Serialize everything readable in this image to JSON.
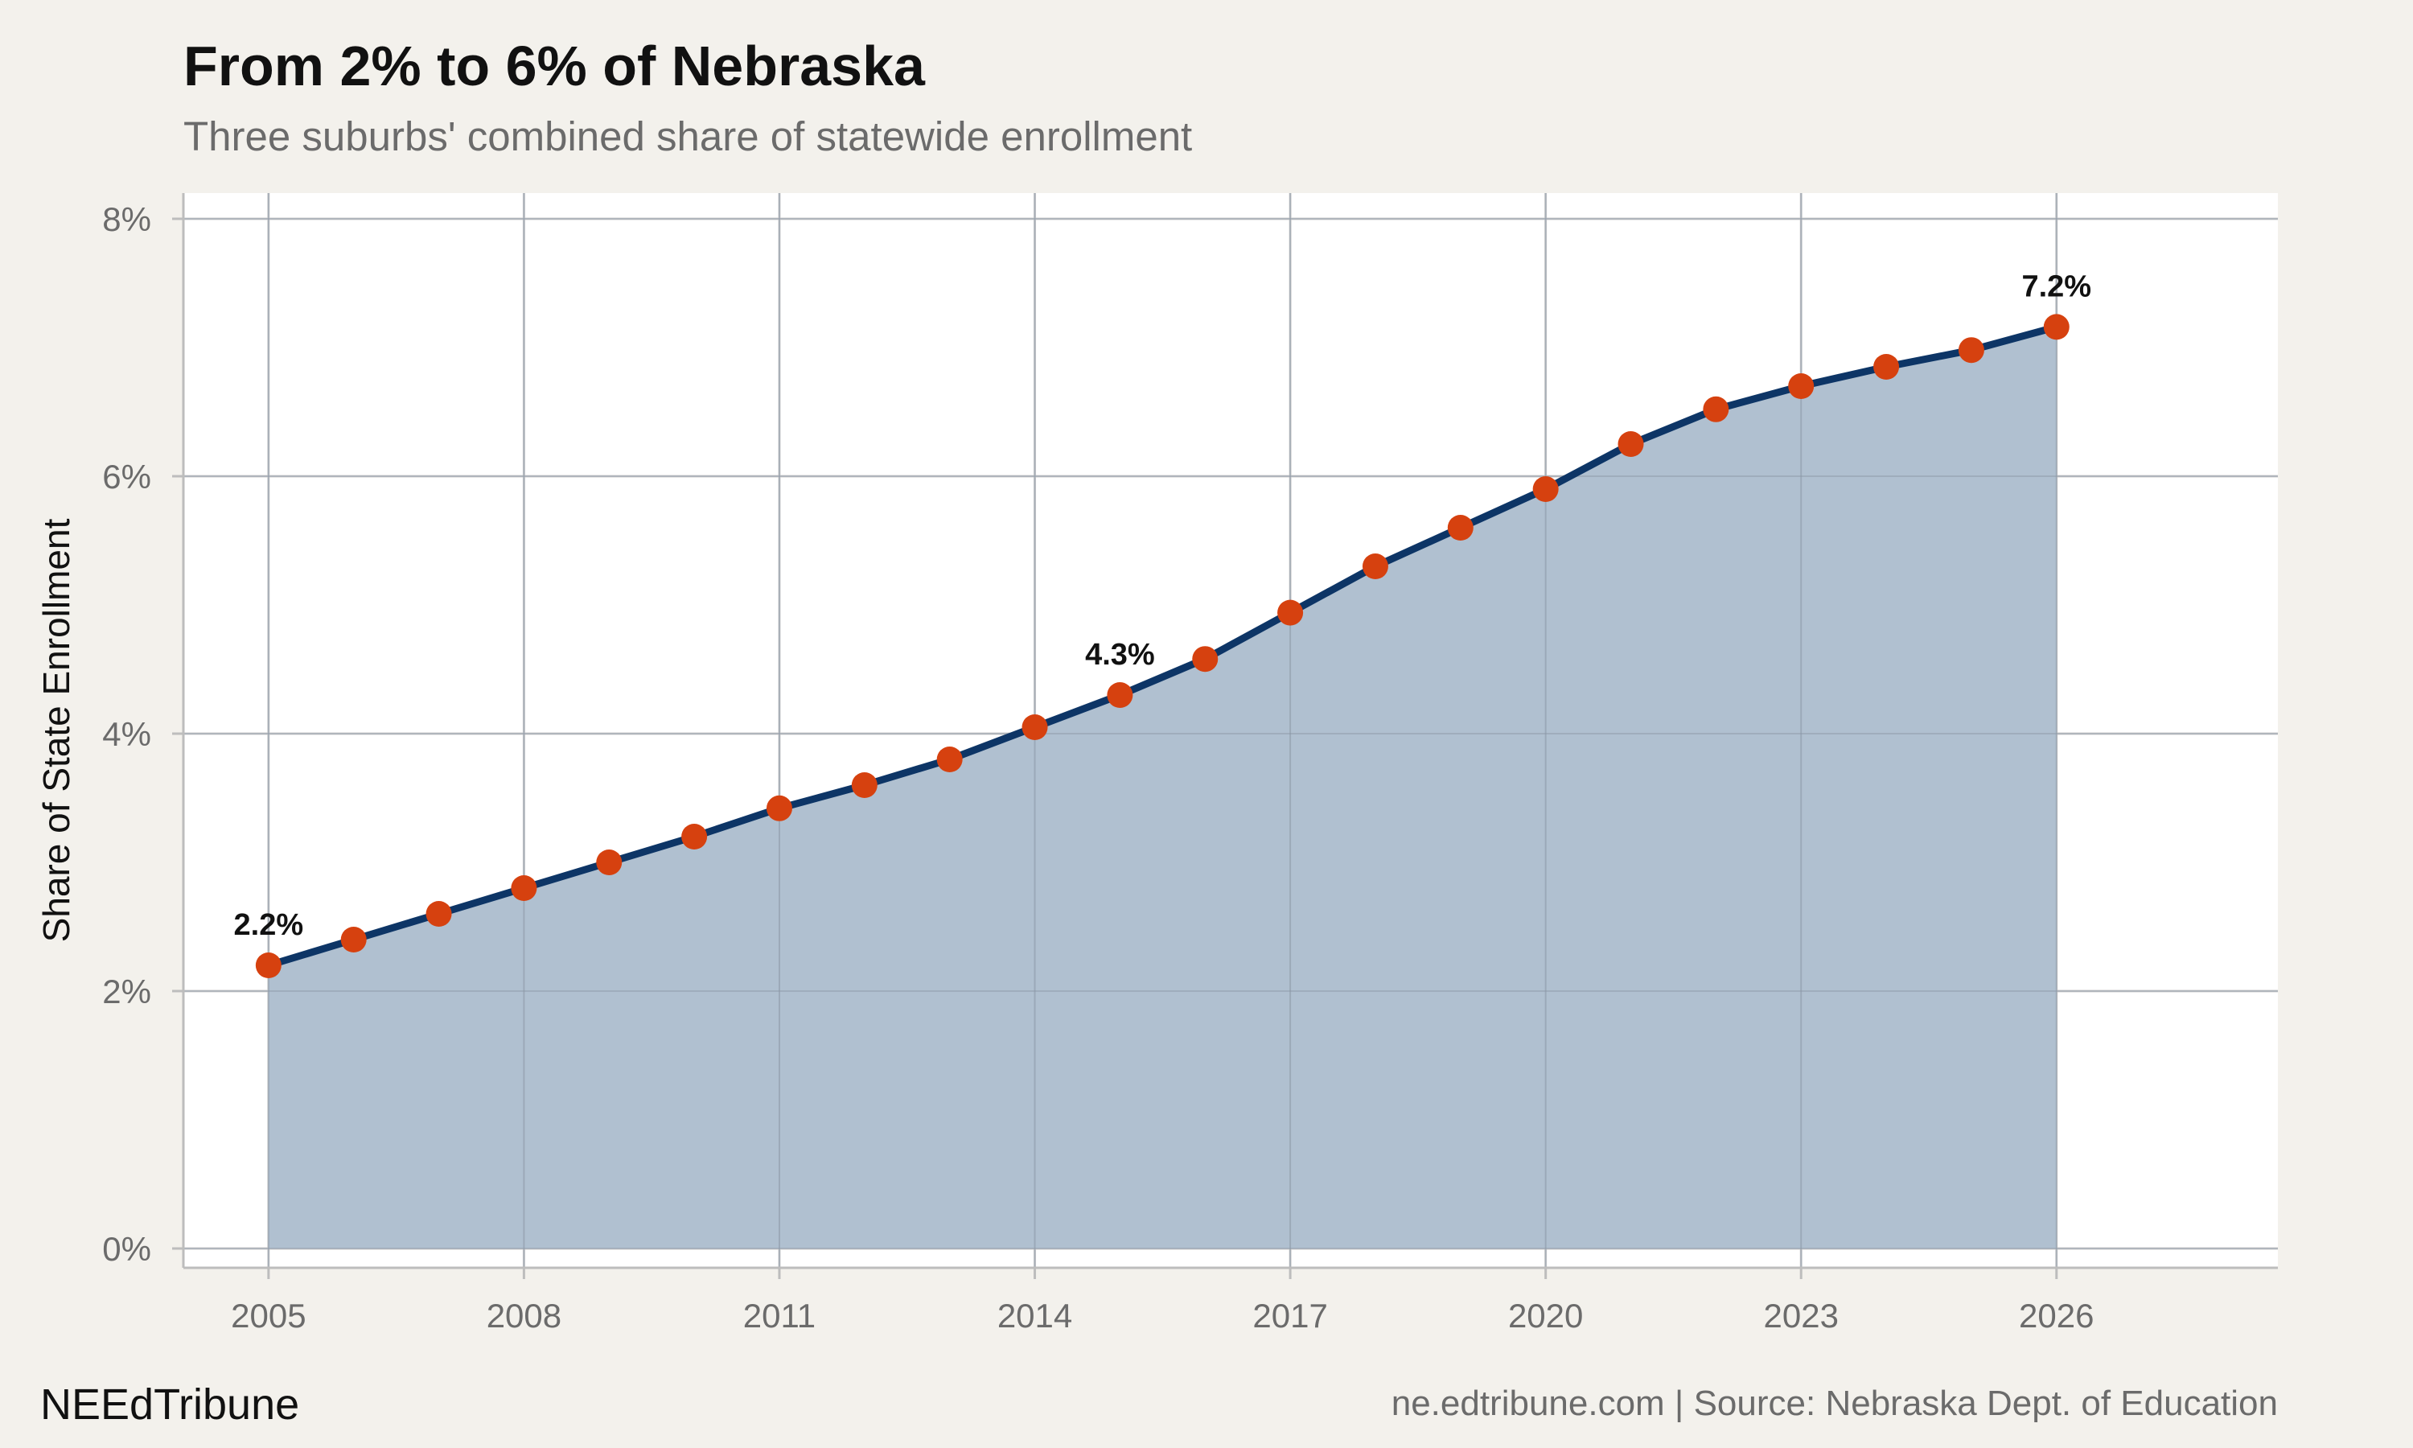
{
  "chart_data": {
    "type": "area",
    "title": "From 2% to 6% of Nebraska",
    "subtitle": "Three suburbs' combined share of statewide enrollment",
    "xlabel": "",
    "ylabel": "Share of State Enrollment",
    "x": [
      2005,
      2006,
      2007,
      2008,
      2009,
      2010,
      2011,
      2012,
      2013,
      2014,
      2015,
      2016,
      2017,
      2018,
      2019,
      2020,
      2021,
      2022,
      2023,
      2024,
      2025,
      2026
    ],
    "series": [
      {
        "values": [
          2.2,
          2.4,
          2.6,
          2.8,
          3.0,
          3.2,
          3.42,
          3.6,
          3.8,
          4.05,
          4.3,
          4.58,
          4.94,
          5.3,
          5.6,
          5.9,
          6.25,
          6.52,
          6.7,
          6.85,
          6.98,
          7.16
        ]
      }
    ],
    "xlim": [
      2004,
      2028.6
    ],
    "ylim": [
      -0.15,
      8.2
    ],
    "xticks": [
      2005,
      2008,
      2011,
      2014,
      2017,
      2020,
      2023,
      2026
    ],
    "xtick_labels": [
      "2005",
      "2008",
      "2011",
      "2014",
      "2017",
      "2020",
      "2023",
      "2026"
    ],
    "yticks": [
      0,
      2,
      4,
      6,
      8
    ],
    "ytick_labels": [
      "0%",
      "2%",
      "4%",
      "6%",
      "8%"
    ],
    "annotations": [
      {
        "x": 2005,
        "y": 2.2,
        "text": "2.2%"
      },
      {
        "x": 2015,
        "y": 4.3,
        "text": "4.3%"
      },
      {
        "x": 2026,
        "y": 7.16,
        "text": "7.2%"
      }
    ],
    "grid": true,
    "colors": {
      "line": "#0d3566",
      "area": "#b0c0d0",
      "marker": "#d6410f",
      "panel": "#ffffff",
      "background": "#f3f1ec",
      "grid": "#cfcfcf"
    }
  },
  "footer": {
    "brand": "NEEdTribune",
    "source": "ne.edtribune.com | Source: Nebraska Dept. of Education"
  }
}
